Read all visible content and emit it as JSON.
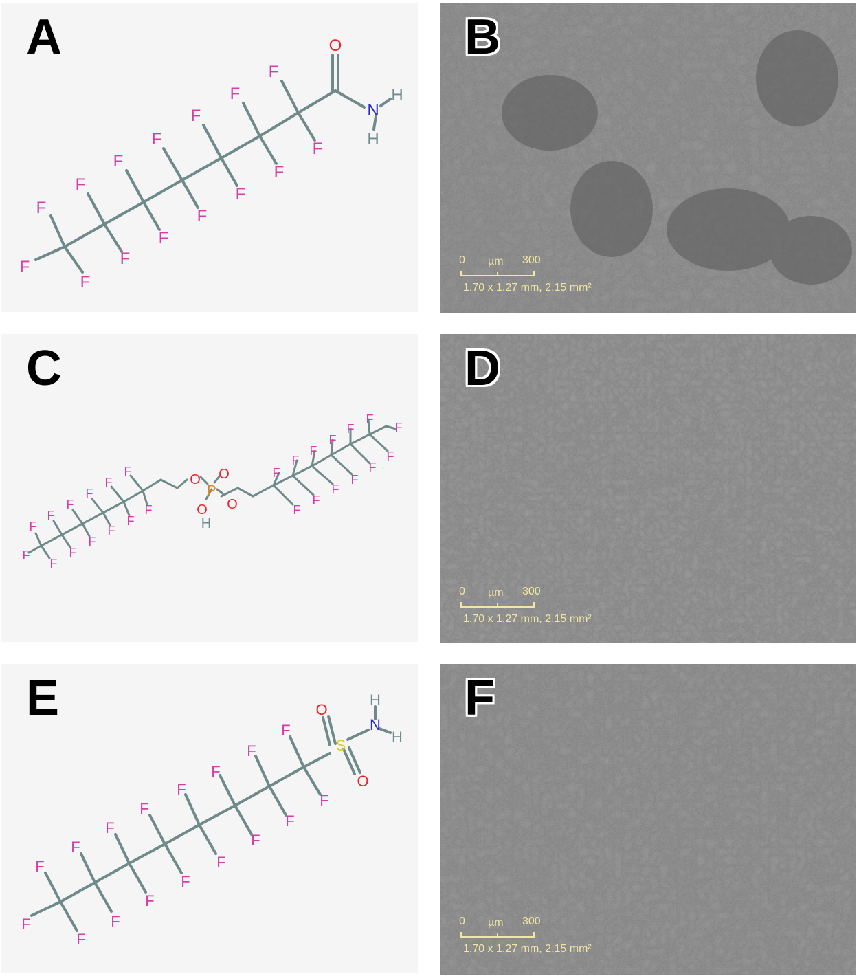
{
  "panels": {
    "a": {
      "letter": "A",
      "atoms": {
        "o": "O",
        "n": "N",
        "h1": "H",
        "h2": "H",
        "f": "F"
      }
    },
    "b": {
      "letter": "B",
      "scale": {
        "zero": "0",
        "unit": "µm",
        "max": "300",
        "dims": "1.70 x 1.27 mm, 2.15 mm²"
      }
    },
    "c": {
      "letter": "C",
      "atoms": {
        "o": "O",
        "p": "P",
        "h": "H",
        "f": "F"
      }
    },
    "d": {
      "letter": "D",
      "scale": {
        "zero": "0",
        "unit": "µm",
        "max": "300",
        "dims": "1.70 x 1.27 mm, 2.15 mm²"
      }
    },
    "e": {
      "letter": "E",
      "atoms": {
        "o": "O",
        "s": "S",
        "n": "N",
        "h": "H",
        "f": "F"
      }
    },
    "f": {
      "letter": "F",
      "scale": {
        "zero": "0",
        "unit": "µm",
        "max": "300",
        "dims": "1.70 x 1.27 mm, 2.15 mm²"
      }
    }
  },
  "colors": {
    "fluorine": "#d63da6",
    "oxygen": "#e8232a",
    "nitrogen": "#2a2ad6",
    "hydrogen": "#6f8a8a",
    "phosphorus": "#d4882a",
    "sulfur": "#d8d028",
    "bond": "#6f8a8a",
    "scalebar": "#f2e6a4"
  }
}
